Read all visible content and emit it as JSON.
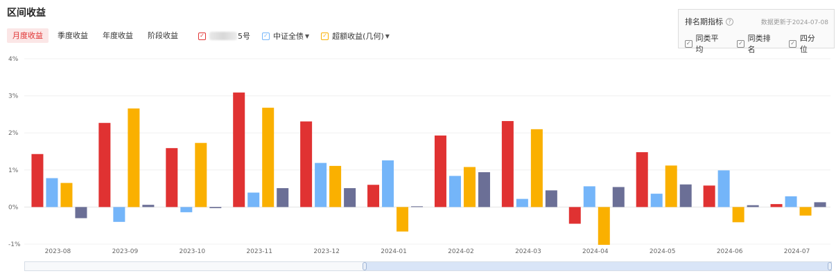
{
  "title": "区间收益",
  "tabs": [
    {
      "label": "月度收益",
      "active": true
    },
    {
      "label": "季度收益",
      "active": false
    },
    {
      "label": "年度收益",
      "active": false
    },
    {
      "label": "阶段收益",
      "active": false
    }
  ],
  "legend": [
    {
      "label": "5号",
      "color": "#e03232",
      "checked": true,
      "redacted_prefix": true,
      "dropdown": false
    },
    {
      "label": "中证全债",
      "color": "#74b5f9",
      "checked": true,
      "redacted_prefix": false,
      "dropdown": true
    },
    {
      "label": "超额收益(几何)",
      "color": "#fab000",
      "checked": true,
      "redacted_prefix": false,
      "dropdown": true
    }
  ],
  "rank_panel": {
    "title": "排名期指标",
    "updated": "数据更新于2024-07-08",
    "options": [
      {
        "label": "同类平均",
        "checked": true
      },
      {
        "label": "同类排名",
        "checked": true
      },
      {
        "label": "四分位",
        "checked": true
      }
    ]
  },
  "chart_data": {
    "type": "bar",
    "categories": [
      "2023-08",
      "2023-09",
      "2023-10",
      "2023-11",
      "2023-12",
      "2024-01",
      "2024-02",
      "2024-03",
      "2024-04",
      "2024-05",
      "2024-06",
      "2024-07"
    ],
    "y_ticks": [
      "4%",
      "3%",
      "2%",
      "1%",
      "0%",
      "-1%"
    ],
    "ylim": [
      -1,
      4
    ],
    "grid": true,
    "series": [
      {
        "name": "5号",
        "color": "#e03232",
        "values": [
          1.43,
          2.27,
          1.59,
          3.09,
          2.31,
          0.6,
          1.93,
          2.32,
          -0.45,
          1.48,
          0.58,
          0.08
        ]
      },
      {
        "name": "中证全债",
        "color": "#74b5f9",
        "values": [
          0.78,
          -0.4,
          -0.14,
          0.39,
          1.19,
          1.26,
          0.84,
          0.22,
          0.56,
          0.36,
          0.99,
          0.29
        ]
      },
      {
        "name": "超额收益(几何)",
        "color": "#fab000",
        "values": [
          0.65,
          2.66,
          1.73,
          2.68,
          1.11,
          -0.66,
          1.08,
          2.1,
          -1.02,
          1.12,
          -0.41,
          -0.23
        ]
      },
      {
        "color": "#6b6f96",
        "values": [
          -0.3,
          0.06,
          -0.03,
          0.51,
          0.51,
          0.02,
          0.94,
          0.45,
          0.54,
          0.61,
          0.05,
          0.13
        ]
      }
    ]
  }
}
